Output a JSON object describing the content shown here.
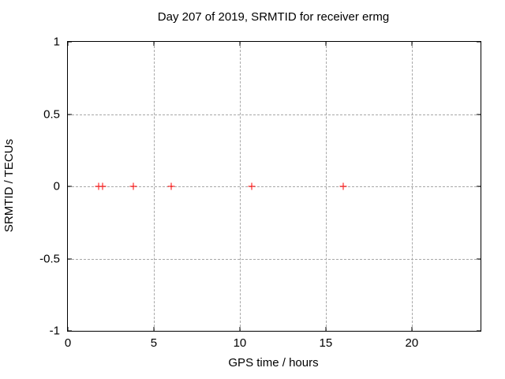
{
  "chart_data": {
    "type": "scatter",
    "title": "Day 207 of 2019, SRMTID for receiver ermg",
    "xlabel": "GPS time / hours",
    "ylabel": "SRMTID / TECUs",
    "xlim": [
      0,
      24
    ],
    "ylim": [
      -1,
      1
    ],
    "xticks": [
      0,
      5,
      10,
      15,
      20
    ],
    "yticks": [
      -1,
      -0.5,
      0,
      0.5,
      1
    ],
    "grid": true,
    "legend_position": "none",
    "marker": "plus",
    "marker_color": "#ff0000",
    "grid_color": "#a8a8a8",
    "frame_color": "#000000",
    "background_color": "#ffffff",
    "series": [
      {
        "name": "SRMTID",
        "x": [
          1.8,
          2.0,
          3.8,
          6.0,
          10.7,
          16.0
        ],
        "y": [
          0,
          0,
          0,
          0,
          0,
          0
        ]
      }
    ]
  }
}
